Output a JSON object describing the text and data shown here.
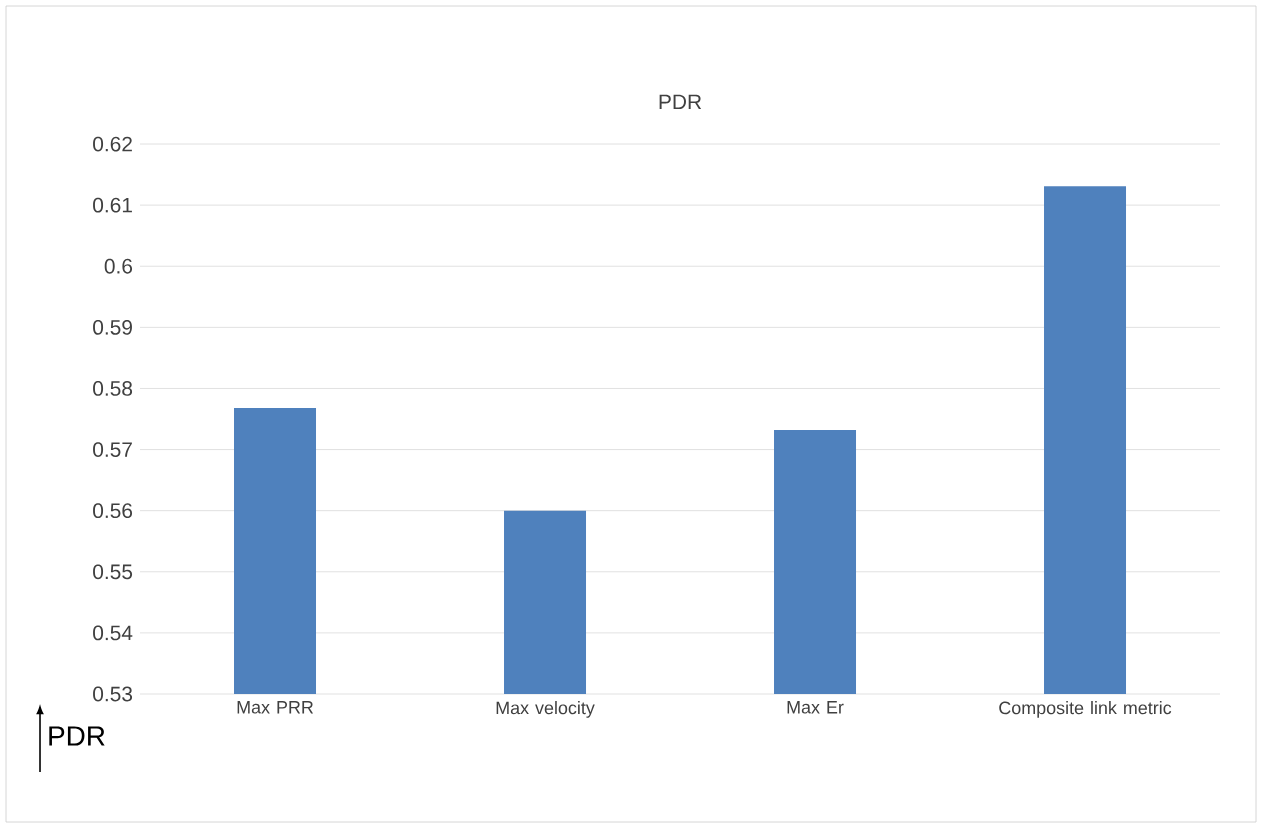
{
  "chart_data": {
    "type": "bar",
    "title": "PDR",
    "ylabel": "PDR",
    "categories": [
      "Max PRR",
      "Max velocity",
      "Max Er",
      "Composite link metric"
    ],
    "values": [
      0.5768,
      0.56,
      0.5732,
      0.6131
    ],
    "color": "#4f81bd",
    "ylim": [
      0.53,
      0.62
    ],
    "yticks": [
      0.53,
      0.54,
      0.55,
      0.56,
      0.57,
      0.58,
      0.59,
      0.6,
      0.61,
      0.62
    ],
    "grid": "y"
  }
}
